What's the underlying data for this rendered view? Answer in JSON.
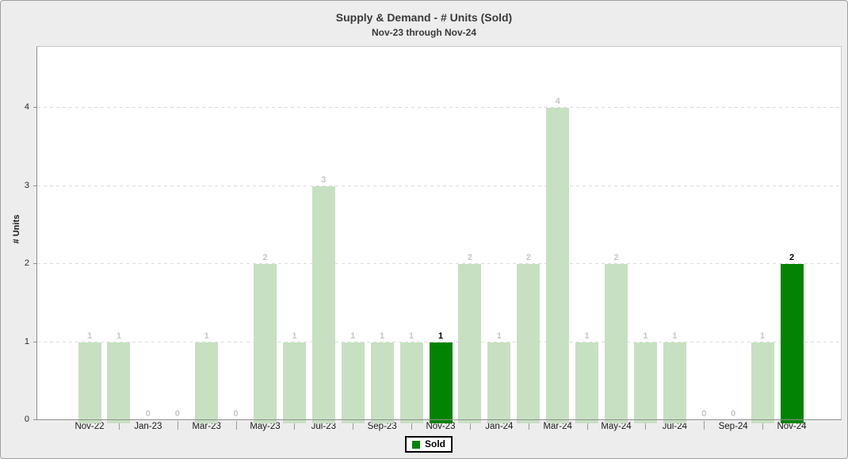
{
  "title": "Supply & Demand - # Units (Sold)",
  "subtitle": "Nov-23 through Nov-24",
  "legend": {
    "label": "Sold",
    "color": "#038303"
  },
  "colors": {
    "background": "#EDEDED",
    "plot_background": "#FFFFFF",
    "outer_border": "#9E9E9E",
    "axis": "#8F8F8F",
    "gridline": "#DCDCDC",
    "bar_default": "#C7E0C2",
    "bar_highlight": "#038303",
    "value_label_default": "#C6C6C6",
    "value_label_highlight": "#000000",
    "title_text": "#3A3A3A"
  },
  "chart_data": {
    "type": "bar",
    "title": "Supply & Demand - # Units (Sold)",
    "subtitle": "Nov-23 through Nov-24",
    "xlabel": "",
    "ylabel": "# Units",
    "ylim": [
      0,
      4.78
    ],
    "yticks": [
      0,
      1,
      2,
      3,
      4
    ],
    "grid": "horizontal-dashed",
    "legend_position": "bottom-center",
    "categories": [
      "Nov-22",
      "Dec-22",
      "Jan-23",
      "Feb-23",
      "Mar-23",
      "Apr-23",
      "May-23",
      "Jun-23",
      "Jul-23",
      "Aug-23",
      "Sep-23",
      "Oct-23",
      "Nov-23",
      "Dec-23",
      "Jan-24",
      "Feb-24",
      "Mar-24",
      "Apr-24",
      "May-24",
      "Jun-24",
      "Jul-24",
      "Aug-24",
      "Sep-24",
      "Oct-24",
      "Nov-24"
    ],
    "x_tick_labels": [
      "Nov-22",
      "Jan-23",
      "Mar-23",
      "May-23",
      "Jul-23",
      "Sep-23",
      "Nov-23",
      "Jan-24",
      "Mar-24",
      "May-24",
      "Jul-24",
      "Sep-24",
      "Nov-24"
    ],
    "series": [
      {
        "name": "Sold",
        "values": [
          1,
          1,
          0,
          0,
          1,
          0,
          2,
          1,
          3,
          1,
          1,
          1,
          1,
          2,
          1,
          2,
          4,
          1,
          2,
          1,
          1,
          0,
          0,
          1,
          2
        ],
        "value_labels_shown": true,
        "highlight_indices": [
          12,
          24
        ]
      }
    ]
  }
}
